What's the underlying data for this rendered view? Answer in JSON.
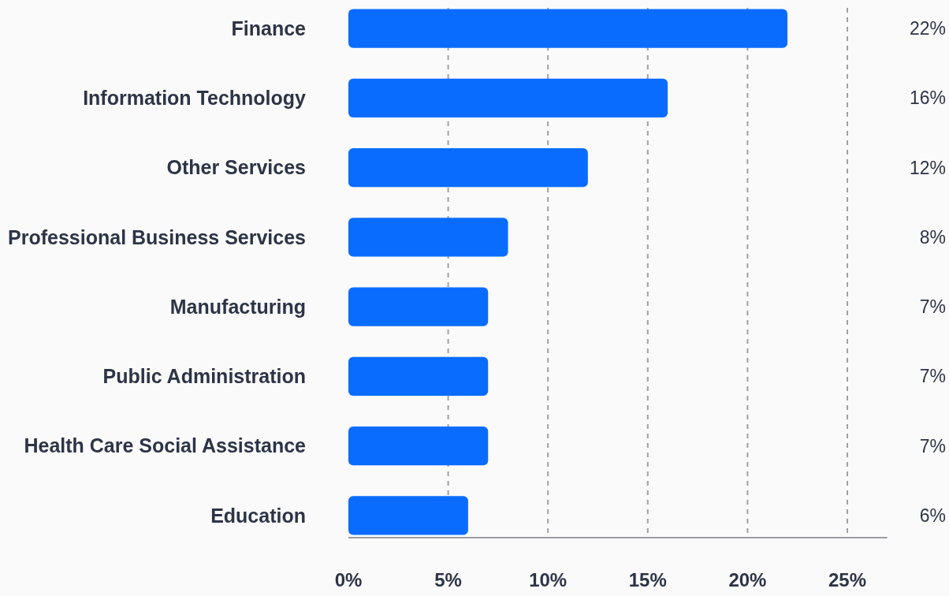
{
  "chart_data": {
    "type": "bar",
    "orientation": "horizontal",
    "categories": [
      "Finance",
      "Information Technology",
      "Other Services",
      "Professional Business Services",
      "Manufacturing",
      "Public Administration",
      "Health Care Social Assistance",
      "Education"
    ],
    "values": [
      22,
      16,
      12,
      8,
      7,
      7,
      7,
      6
    ],
    "color": "#0a6cff",
    "xlim": [
      0,
      27
    ],
    "xticks": [
      {
        "value": 0,
        "label": "0%"
      },
      {
        "value": 5,
        "label": "5%"
      },
      {
        "value": 10,
        "label": "10%"
      },
      {
        "value": 15,
        "label": "15%"
      },
      {
        "value": 20,
        "label": "20%"
      },
      {
        "value": 25,
        "label": "25%"
      }
    ],
    "value_labels": [
      "22%",
      "16%",
      "12%",
      "8%",
      "7%",
      "7%",
      "7%",
      "6%"
    ],
    "grid": "x"
  }
}
